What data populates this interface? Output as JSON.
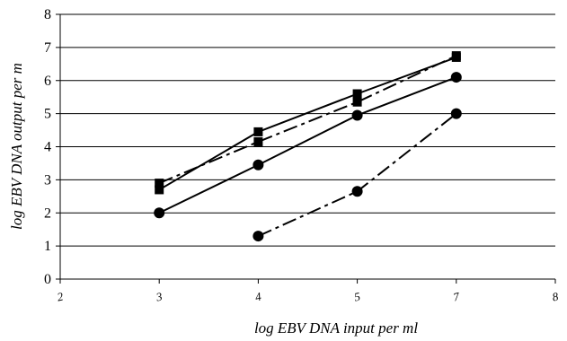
{
  "chart_data": {
    "type": "line",
    "xlabel": "log EBV DNA input per ml",
    "ylabel": "log EBV DNA output per m",
    "xlim": [
      2,
      8
    ],
    "ylim": [
      0,
      8
    ],
    "x_ticks": [
      "2",
      "3",
      "4",
      "5",
      "7",
      "8"
    ],
    "y_ticks": [
      "0",
      "1",
      "2",
      "3",
      "4",
      "5",
      "6",
      "7",
      "8"
    ],
    "grid": "horizontal",
    "series": [
      {
        "marker": "square",
        "dash": "solid",
        "points": [
          {
            "x": "3",
            "y": 2.7
          },
          {
            "x": "4",
            "y": 4.45
          },
          {
            "x": "5",
            "y": 5.6
          },
          {
            "x": "7",
            "y": 6.7
          }
        ]
      },
      {
        "marker": "square",
        "dash": "dash-dot",
        "points": [
          {
            "x": "3",
            "y": 2.9
          },
          {
            "x": "4",
            "y": 4.15
          },
          {
            "x": "5",
            "y": 5.35
          },
          {
            "x": "7",
            "y": 6.75
          }
        ]
      },
      {
        "marker": "circle",
        "dash": "solid",
        "points": [
          {
            "x": "3",
            "y": 2.0
          },
          {
            "x": "4",
            "y": 3.45
          },
          {
            "x": "5",
            "y": 4.95
          },
          {
            "x": "7",
            "y": 6.1
          }
        ]
      },
      {
        "marker": "circle",
        "dash": "dash-dot",
        "points": [
          {
            "x": "4",
            "y": 1.3
          },
          {
            "x": "5",
            "y": 2.65
          },
          {
            "x": "7",
            "y": 5.0
          }
        ]
      }
    ]
  }
}
